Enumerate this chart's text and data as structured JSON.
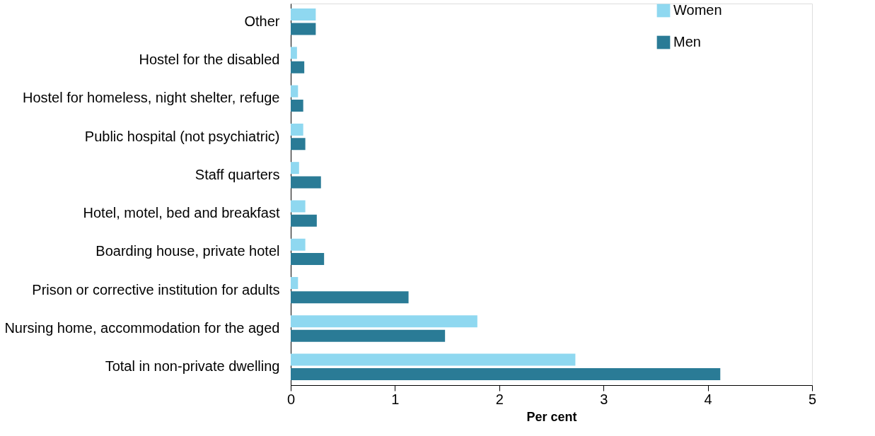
{
  "chart_data": {
    "type": "bar",
    "orientation": "horizontal",
    "xlabel": "Per cent",
    "categories": [
      "Other",
      "Hostel for the disabled",
      "Hostel for homeless, night shelter, refuge",
      "Public hospital (not psychiatric)",
      "Staff quarters",
      "Hotel, motel, bed and breakfast",
      "Boarding house, private hotel",
      "Prison or corrective institution for adults",
      "Nursing home, accommodation for the aged",
      "Total in non-private dwelling"
    ],
    "series": [
      {
        "name": "Women",
        "color": "#8fd8f0",
        "values": [
          0.24,
          0.06,
          0.07,
          0.12,
          0.08,
          0.14,
          0.14,
          0.07,
          1.79,
          2.73
        ]
      },
      {
        "name": "Men",
        "color": "#2a7b96",
        "values": [
          0.24,
          0.13,
          0.12,
          0.14,
          0.29,
          0.25,
          0.32,
          1.13,
          1.48,
          4.12
        ]
      }
    ],
    "xlim": [
      0,
      5
    ],
    "xticks": [
      0,
      1,
      2,
      3,
      4,
      5
    ],
    "grid": false,
    "legend": "right"
  }
}
